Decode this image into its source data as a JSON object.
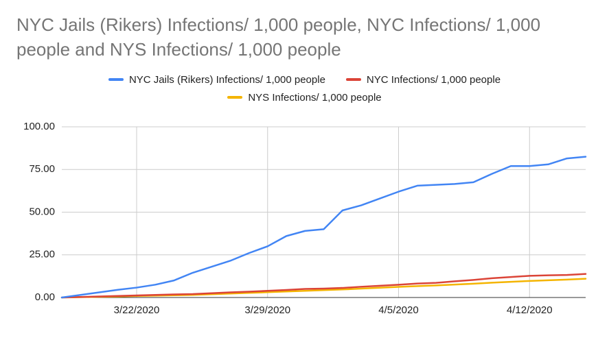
{
  "chart_data": {
    "type": "line",
    "title": "NYC Jails (Rikers) Infections/ 1,000 people, NYC Infections/ 1,000 people and NYS Infections/ 1,000 people",
    "categories": [
      null,
      null,
      null,
      null,
      "3/22/2020",
      null,
      null,
      null,
      null,
      null,
      null,
      "3/29/2020",
      null,
      null,
      null,
      null,
      null,
      null,
      "4/5/2020",
      null,
      null,
      null,
      null,
      null,
      null,
      "4/12/2020",
      null,
      null,
      null
    ],
    "series": [
      {
        "name": "NYC Jails (Rikers) Infections/ 1,000 people",
        "color": "#4285f4",
        "values": [
          0,
          1.5,
          3,
          4.5,
          5.8,
          7.5,
          10,
          14.5,
          18,
          21.5,
          26,
          30,
          36,
          39,
          40,
          51,
          54,
          58,
          62,
          65.5,
          66,
          66.5,
          67.5,
          72.5,
          77,
          77,
          78,
          81.5,
          82.5
        ]
      },
      {
        "name": "NYC Infections/ 1,000 people",
        "color": "#db4437",
        "values": [
          0,
          0.3,
          0.6,
          0.9,
          1.2,
          1.5,
          1.8,
          2.0,
          2.5,
          3.0,
          3.4,
          3.9,
          4.4,
          5.0,
          5.2,
          5.6,
          6.3,
          6.9,
          7.5,
          8.2,
          8.6,
          9.5,
          10.3,
          11.3,
          12.0,
          12.7,
          13.0,
          13.2,
          13.8
        ]
      },
      {
        "name": "NYS Infections/ 1,000 people",
        "color": "#f4b400",
        "values": [
          0,
          0.2,
          0.4,
          0.6,
          0.9,
          1.1,
          1.3,
          1.5,
          1.9,
          2.3,
          2.7,
          3.1,
          3.5,
          3.9,
          4.3,
          4.7,
          5.2,
          5.7,
          6.2,
          6.7,
          7.1,
          7.6,
          8.1,
          8.7,
          9.2,
          9.7,
          10.1,
          10.5,
          11.0
        ]
      }
    ],
    "ylim": [
      0,
      100
    ],
    "yticks": [
      {
        "value": 0,
        "label": "0.00"
      },
      {
        "value": 25,
        "label": "25.00"
      },
      {
        "value": 50,
        "label": "50.00"
      },
      {
        "value": 75,
        "label": "75.00"
      },
      {
        "value": 100,
        "label": "100.00"
      }
    ],
    "grid": true,
    "legend": "top"
  }
}
